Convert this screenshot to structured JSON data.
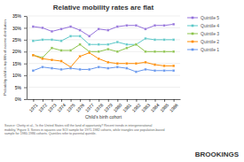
{
  "chart_data": {
    "type": "line",
    "title": "Relative mobility rates are flat",
    "x_label": "Child's birth cohort",
    "y_label": "Probability child in top fifth of income distribution",
    "x": [
      1971,
      1972,
      1973,
      1974,
      1975,
      1976,
      1977,
      1978,
      1979,
      1980,
      1981,
      1982,
      1983,
      1984,
      1985,
      1986
    ],
    "series": [
      {
        "name": "Quintile 5",
        "color": "#9370DB",
        "marker": "square",
        "values": [
          30.5,
          30.0,
          28.5,
          29.5,
          30.5,
          29.0,
          26.5,
          29.5,
          29.0,
          30.5,
          31.0,
          31.0,
          29.5,
          31.0,
          31.0,
          31.5
        ]
      },
      {
        "name": "Quintile 4",
        "color": "#5BC8C8",
        "marker": "square",
        "values": [
          24.5,
          25.0,
          25.0,
          24.5,
          26.5,
          26.5,
          23.0,
          23.0,
          23.0,
          24.0,
          23.0,
          23.0,
          25.5,
          25.0,
          25.0,
          25.0
        ]
      },
      {
        "name": "Quintile 3",
        "color": "#8BC34A",
        "marker": "square",
        "values": [
          18.5,
          17.5,
          21.5,
          20.5,
          20.5,
          23.0,
          20.0,
          20.0,
          21.0,
          20.0,
          21.5,
          23.0,
          20.0,
          20.0,
          20.0,
          20.0
        ]
      },
      {
        "name": "Quintile 2",
        "color": "#FF8C00",
        "marker": "square",
        "values": [
          18.5,
          17.0,
          16.5,
          16.0,
          13.5,
          18.0,
          19.5,
          17.0,
          15.5,
          15.0,
          15.0,
          15.0,
          15.5,
          14.5,
          14.0,
          14.0
        ]
      },
      {
        "name": "Quintile 1",
        "color": "#6495ED",
        "marker": "square",
        "values": [
          12.0,
          13.5,
          13.0,
          12.5,
          13.0,
          12.5,
          12.5,
          13.5,
          13.0,
          13.5,
          13.0,
          11.5,
          12.5,
          12.0,
          12.0,
          12.0
        ]
      }
    ],
    "xlim": [
      1970.3,
      1986.7
    ],
    "xticks": [
      1971,
      1972,
      1973,
      1974,
      1975,
      1976,
      1977,
      1978,
      1979,
      1980,
      1981,
      1982,
      1983,
      1984,
      1985,
      1986
    ],
    "ylim": [
      0,
      35
    ],
    "yticks": [
      {
        "value": 0,
        "label": "0%"
      },
      {
        "value": 5,
        "label": "5%"
      },
      {
        "value": 10,
        "label": "10%"
      },
      {
        "value": 15,
        "label": "15%"
      },
      {
        "value": 20,
        "label": "20%"
      },
      {
        "value": 25,
        "label": "25%"
      },
      {
        "value": 30,
        "label": "30%"
      },
      {
        "value": 35,
        "label": "35%"
      }
    ],
    "grid": "y",
    "legend": "right",
    "annotations": [
      "Source: Chetty et al., 'Is the United States still the land of opportunity? Recent trends in intergenerational\nmobility,' Figure 3. Series in squares use SOI sample for 1971-1982 cohorts, while triangles use population-based\nsample for 1980-1986 cohorts. Quintiles refer to parental quintile.",
      "BROOKINGS"
    ]
  }
}
